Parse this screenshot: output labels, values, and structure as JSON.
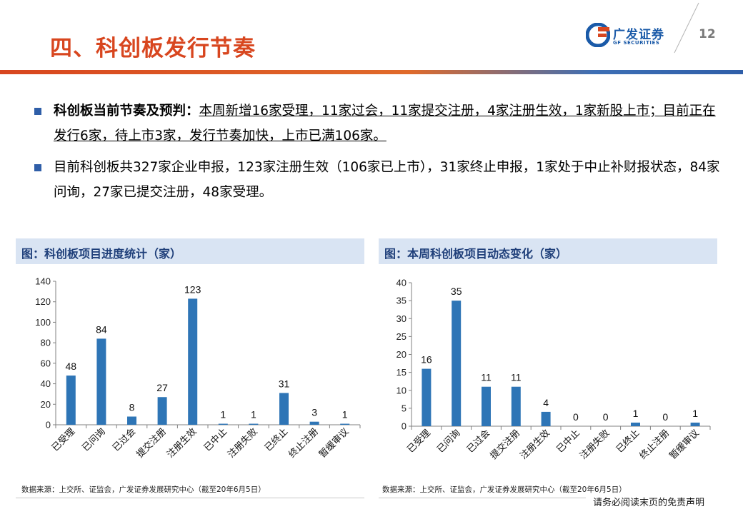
{
  "header": {
    "title": "四、科创板发行节奏",
    "logo_cn": "广发证券",
    "logo_en": "GF SECURITIES",
    "page_number": "12"
  },
  "bullets": [
    {
      "bold": "科创板当前节奏及预判：",
      "underlined": "本周新增16家受理，11家过会，11家提交注册，4家注册生效，1家新股上市；目前正在发行6家，待上市3家，发行节奏加快，上市已满106家。"
    },
    {
      "text": "目前科创板共327家企业申报，123家注册生效（106家已上市），31家终止申报，1家处于中止补财报状态，84家问询，27家已提交注册，48家受理。"
    }
  ],
  "panels": [
    {
      "heading": "图：科创板项目进度统计（家）",
      "source": "数据来源：上交所、证监会，广发证券发展研究中心（截至20年6月5日）"
    },
    {
      "heading": "图：本周科创板项目动态变化（家）",
      "source": "数据来源：上交所、证监会，广发证券发展研究中心（截至20年6月5日）"
    }
  ],
  "footer": {
    "disclaimer": "请务必阅读末页的免责声明"
  },
  "colors": {
    "bar": "#2e75b6",
    "title": "#d8461f",
    "accent_blue": "#2f5ea8",
    "panel_bg": "#d9e4f3"
  },
  "chart_data": [
    {
      "type": "bar",
      "categories": [
        "已受理",
        "已问询",
        "已过会",
        "提交注册",
        "注册生效",
        "已中止",
        "注册失败",
        "已终止",
        "终止注册",
        "暂缓审议"
      ],
      "values": [
        48,
        84,
        8,
        27,
        123,
        1,
        1,
        31,
        3,
        1
      ],
      "ylim": [
        0,
        140
      ],
      "yticks": [
        0,
        20,
        40,
        60,
        80,
        100,
        120,
        140
      ],
      "grid": false
    },
    {
      "type": "bar",
      "categories": [
        "已受理",
        "已问询",
        "已过会",
        "提交注册",
        "注册生效",
        "已中止",
        "注册失败",
        "已终止",
        "终止注册",
        "暂缓审议"
      ],
      "values": [
        16,
        35,
        11,
        11,
        4,
        0,
        0,
        1,
        0,
        1
      ],
      "ylim": [
        0,
        40
      ],
      "yticks": [
        0,
        5,
        10,
        15,
        20,
        25,
        30,
        35,
        40
      ],
      "grid": false
    }
  ]
}
